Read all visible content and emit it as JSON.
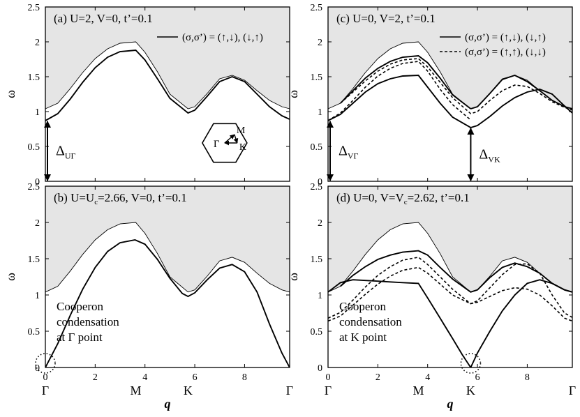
{
  "figure": {
    "shared_xlabel": "q",
    "shared_ylabel": "ω",
    "k_path_ticks": [
      "Γ",
      "M",
      "K",
      "Γ"
    ],
    "k_path_positions": [
      0,
      3.63,
      5.73,
      9.81
    ],
    "x_numeric_ticks": [
      "0",
      "2",
      "4",
      "6",
      "8"
    ],
    "y_ticks": [
      "0",
      "0.5",
      "1",
      "1.5",
      "2",
      "2.5"
    ],
    "inset_labels": {
      "gamma": "Γ",
      "m": "M",
      "k": "K"
    }
  },
  "chart_data": [
    {
      "panel": "a",
      "type": "line",
      "title": "(a) U=2, V=0, t’=0.1",
      "legend": [
        "(σ,σ’) = (↑,↓), (↓,↑)"
      ],
      "legend_position": "top-right",
      "xlim": [
        0,
        9.81
      ],
      "ylim": [
        0,
        2.5
      ],
      "continuum_edge": {
        "x": [
          0,
          0.5,
          1,
          1.5,
          2,
          2.5,
          3,
          3.63,
          4,
          4.5,
          5,
          5.73,
          6,
          6.5,
          7,
          7.5,
          8,
          8.5,
          9,
          9.5,
          9.81
        ],
        "y": [
          1.04,
          1.12,
          1.33,
          1.56,
          1.76,
          1.9,
          1.98,
          2.0,
          1.85,
          1.57,
          1.25,
          1.04,
          1.07,
          1.26,
          1.47,
          1.52,
          1.45,
          1.3,
          1.16,
          1.07,
          1.04
        ]
      },
      "series": [
        {
          "style": "solid",
          "x": [
            0,
            0.5,
            1,
            1.5,
            2,
            2.5,
            3,
            3.63,
            4,
            4.5,
            5,
            5.73,
            6,
            6.5,
            7,
            7.5,
            8,
            8.5,
            9,
            9.5,
            9.81
          ],
          "y": [
            0.87,
            0.97,
            1.18,
            1.42,
            1.63,
            1.78,
            1.86,
            1.88,
            1.74,
            1.47,
            1.19,
            0.98,
            1.02,
            1.22,
            1.43,
            1.5,
            1.43,
            1.25,
            1.07,
            0.94,
            0.89
          ]
        }
      ],
      "annotations": [
        {
          "text": "Δ",
          "sub": "UΓ",
          "at": [
            0,
            0.87
          ]
        }
      ]
    },
    {
      "panel": "b",
      "type": "line",
      "title_prefix": "(b) U=U",
      "title_sub": "c",
      "title_suffix": "=2.66, V=0, t’=0.1",
      "note": [
        "Cooperon",
        "condensation",
        "at Γ point"
      ],
      "xlim": [
        0,
        9.81
      ],
      "ylim": [
        0,
        2.5
      ],
      "continuum_edge": {
        "x": [
          0,
          0.5,
          1,
          1.5,
          2,
          2.5,
          3,
          3.63,
          4,
          4.5,
          5,
          5.73,
          6,
          6.5,
          7,
          7.5,
          8,
          8.5,
          9,
          9.5,
          9.81
        ],
        "y": [
          1.04,
          1.12,
          1.33,
          1.56,
          1.76,
          1.9,
          1.98,
          2.0,
          1.85,
          1.57,
          1.25,
          1.04,
          1.07,
          1.26,
          1.47,
          1.52,
          1.45,
          1.3,
          1.16,
          1.07,
          1.04
        ]
      },
      "series": [
        {
          "style": "solid",
          "x": [
            0,
            0.5,
            1,
            1.5,
            2,
            2.5,
            3,
            3.6,
            4,
            4.5,
            5,
            5.5,
            5.73,
            6,
            6.5,
            7,
            7.5,
            8,
            8.5,
            9,
            9.5,
            9.81
          ],
          "y": [
            0.0,
            0.33,
            0.72,
            1.08,
            1.38,
            1.6,
            1.72,
            1.76,
            1.7,
            1.49,
            1.23,
            1.02,
            0.98,
            1.03,
            1.21,
            1.37,
            1.42,
            1.32,
            1.04,
            0.6,
            0.2,
            0.0
          ]
        }
      ]
    },
    {
      "panel": "c",
      "type": "line",
      "title": "(c) U=0, V=2, t’=0.1",
      "legend": [
        "(σ,σ’) = (↑,↓), (↓,↑)",
        "(σ,σ’) = (↑,↑), (↓,↓)"
      ],
      "legend_position": "top-right",
      "xlim": [
        0,
        9.81
      ],
      "ylim": [
        0,
        2.5
      ],
      "continuum_edge": {
        "x": [
          0,
          0.5,
          1,
          1.5,
          2,
          2.5,
          3,
          3.63,
          4,
          4.5,
          5,
          5.73,
          6,
          6.5,
          7,
          7.5,
          8,
          8.5,
          9,
          9.5,
          9.81
        ],
        "y": [
          1.04,
          1.12,
          1.33,
          1.56,
          1.76,
          1.9,
          1.98,
          2.0,
          1.85,
          1.57,
          1.25,
          1.04,
          1.07,
          1.26,
          1.47,
          1.52,
          1.45,
          1.3,
          1.16,
          1.07,
          1.04
        ]
      },
      "series": [
        {
          "style": "solid",
          "x": [
            0,
            0.5,
            1,
            1.5,
            2,
            2.5,
            3,
            3.63,
            4,
            4.5,
            5,
            5.73,
            6,
            6.5,
            7,
            7.5,
            8,
            8.5,
            9,
            9.5,
            9.81
          ],
          "y": [
            0.87,
            0.96,
            1.12,
            1.28,
            1.4,
            1.47,
            1.51,
            1.52,
            1.35,
            1.12,
            0.92,
            0.77,
            0.8,
            0.93,
            1.08,
            1.2,
            1.28,
            1.32,
            1.25,
            1.08,
            0.98
          ]
        },
        {
          "style": "solid",
          "x": [
            0.5,
            1,
            1.5,
            2,
            2.5,
            3,
            3.63,
            4,
            4.5,
            5,
            5.73
          ],
          "y": [
            1.12,
            1.3,
            1.48,
            1.62,
            1.72,
            1.78,
            1.8,
            1.7,
            1.48,
            1.24,
            1.04
          ]
        },
        {
          "style": "solid",
          "x": [
            5.73,
            6,
            6.5,
            7,
            7.5,
            8,
            8.5,
            9,
            9.5,
            9.81
          ],
          "y": [
            1.04,
            1.07,
            1.26,
            1.46,
            1.52,
            1.43,
            1.3,
            1.16,
            1.07,
            1.04
          ]
        },
        {
          "style": "dashed",
          "x": [
            0,
            0.5,
            1,
            1.5,
            2,
            2.5,
            3,
            3.63,
            4,
            4.5,
            5,
            5.73
          ],
          "y": [
            0.87,
            0.98,
            1.16,
            1.35,
            1.51,
            1.62,
            1.69,
            1.72,
            1.58,
            1.32,
            1.1,
            0.88
          ]
        },
        {
          "style": "dashed",
          "x": [
            0.5,
            1,
            1.5,
            2,
            2.5,
            3,
            3.63,
            4,
            4.5,
            5,
            5.73,
            6,
            6.5,
            7,
            7.5,
            8,
            8.5,
            9,
            9.5,
            9.81
          ],
          "y": [
            1.12,
            1.28,
            1.44,
            1.58,
            1.68,
            1.74,
            1.76,
            1.64,
            1.42,
            1.2,
            0.97,
            1.0,
            1.16,
            1.3,
            1.38,
            1.36,
            1.26,
            1.14,
            1.06,
            1.02
          ]
        }
      ],
      "annotations": [
        {
          "text": "Δ",
          "sub": "VΓ",
          "at": [
            0,
            0.87
          ]
        },
        {
          "text": "Δ",
          "sub": "VK",
          "at": [
            5.73,
            0.77
          ]
        }
      ]
    },
    {
      "panel": "d",
      "type": "line",
      "title_prefix": "(d) U=0, V=V",
      "title_sub": "c",
      "title_suffix": "=2.62, t’=0.1",
      "note": [
        "Cooperon",
        "condensation",
        "at K point"
      ],
      "xlim": [
        0,
        9.81
      ],
      "ylim": [
        0,
        2.5
      ],
      "continuum_edge": {
        "x": [
          0,
          0.5,
          1,
          1.5,
          2,
          2.5,
          3,
          3.63,
          4,
          4.5,
          5,
          5.73,
          6,
          6.5,
          7,
          7.5,
          8,
          8.5,
          9,
          9.5,
          9.81
        ],
        "y": [
          1.04,
          1.12,
          1.33,
          1.56,
          1.76,
          1.9,
          1.98,
          2.0,
          1.85,
          1.57,
          1.25,
          1.04,
          1.07,
          1.26,
          1.47,
          1.52,
          1.45,
          1.3,
          1.16,
          1.07,
          1.04
        ]
      },
      "series": [
        {
          "style": "solid",
          "x": [
            0,
            0.5,
            1,
            1.5,
            2,
            2.5,
            3,
            3.63,
            4,
            4.5,
            5,
            5.4,
            5.73,
            6,
            6.5,
            7,
            7.5,
            8,
            8.5,
            9,
            9.5,
            9.81
          ],
          "y": [
            1.04,
            1.17,
            1.21,
            1.2,
            1.19,
            1.18,
            1.17,
            1.16,
            0.96,
            0.68,
            0.4,
            0.17,
            0.0,
            0.2,
            0.5,
            0.78,
            1.0,
            1.16,
            1.21,
            1.16,
            1.07,
            1.04
          ]
        },
        {
          "style": "solid",
          "x": [
            0.5,
            1,
            1.5,
            2,
            2.5,
            3,
            3.63,
            4,
            4.5,
            5,
            5.73,
            6,
            6.5,
            7,
            7.5,
            8,
            8.5,
            9,
            9.5,
            9.81
          ],
          "y": [
            1.12,
            1.27,
            1.39,
            1.49,
            1.55,
            1.59,
            1.61,
            1.55,
            1.38,
            1.22,
            1.04,
            1.07,
            1.24,
            1.38,
            1.44,
            1.39,
            1.3,
            1.16,
            1.07,
            1.04
          ]
        },
        {
          "style": "dashed",
          "x": [
            0,
            0.5,
            1,
            1.5,
            2,
            2.5,
            3,
            3.63,
            4,
            4.5,
            5,
            5.73,
            6,
            6.5,
            7,
            7.5,
            8,
            8.5,
            9,
            9.5,
            9.81
          ],
          "y": [
            0.68,
            0.76,
            0.93,
            1.11,
            1.27,
            1.39,
            1.48,
            1.52,
            1.42,
            1.25,
            1.08,
            0.88,
            0.92,
            1.1,
            1.28,
            1.42,
            1.43,
            1.3,
            1.0,
            0.75,
            0.69
          ]
        },
        {
          "style": "dashed",
          "x": [
            0,
            0.5,
            1,
            1.5,
            2,
            2.5,
            3,
            3.63,
            4,
            4.5,
            5,
            5.73,
            6,
            6.5,
            7,
            7.5,
            8,
            8.5,
            9,
            9.5,
            9.81
          ],
          "y": [
            0.64,
            0.71,
            0.86,
            1.01,
            1.15,
            1.26,
            1.34,
            1.38,
            1.3,
            1.15,
            1.0,
            0.88,
            0.9,
            0.98,
            1.06,
            1.1,
            1.08,
            1.0,
            0.85,
            0.68,
            0.64
          ]
        }
      ]
    }
  ]
}
